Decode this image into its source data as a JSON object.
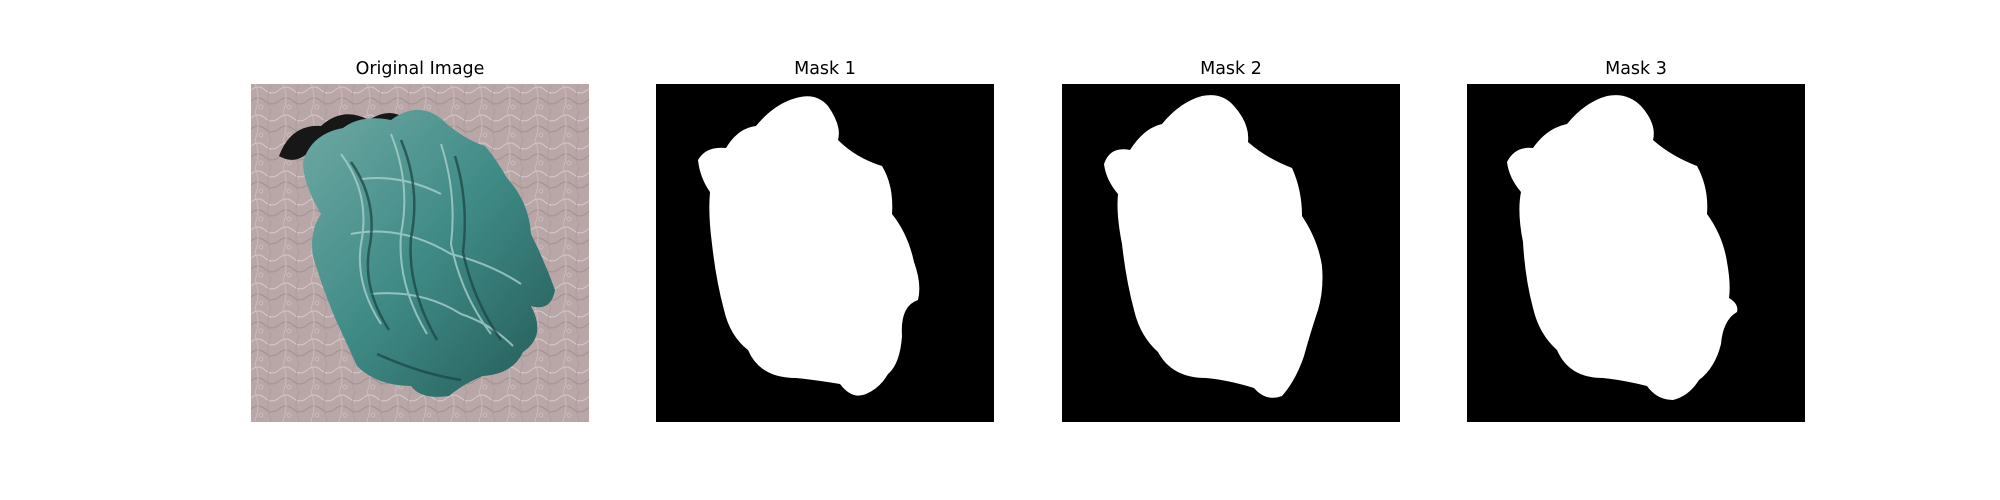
{
  "figure": {
    "panels": [
      {
        "id": "original",
        "title": "Original Image",
        "kind": "photo"
      },
      {
        "id": "mask-1",
        "title": "Mask 1",
        "kind": "binary-mask"
      },
      {
        "id": "mask-2",
        "title": "Mask 2",
        "kind": "binary-mask"
      },
      {
        "id": "mask-3",
        "title": "Mask 3",
        "kind": "binary-mask"
      }
    ]
  },
  "colors": {
    "figure_background": "#ffffff",
    "mask_background": "#000000",
    "mask_foreground": "#ffffff",
    "terrain_base": "#3f8a86",
    "terrain_highlight": "#a9d0cb",
    "terrain_shadow": "#1c4744",
    "surround": "#b9a7a8"
  }
}
